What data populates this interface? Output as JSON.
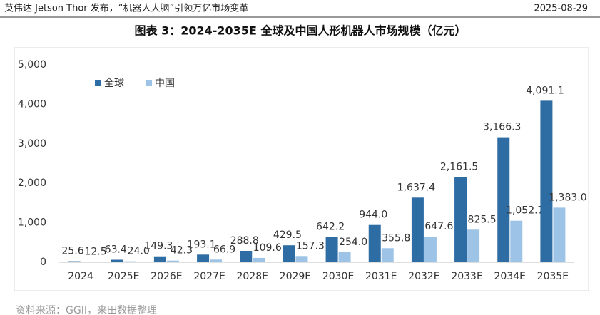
{
  "header": {
    "left": "英伟达 Jetson Thor 发布，“机器人大脑”引领万亿市场变革",
    "date": "2025-08-29"
  },
  "source": "资料来源：GGII，来田数据整理",
  "chart_data": {
    "type": "bar",
    "title": "图表 3：2024-2035E 全球及中国人形机器人市场规模（亿元）",
    "categories": [
      "2024",
      "2025E",
      "2026E",
      "2027E",
      "2028E",
      "2029E",
      "2030E",
      "2031E",
      "2032E",
      "2033E",
      "2034E",
      "2035E"
    ],
    "series": [
      {
        "name": "全球",
        "color": "#2e6ca4",
        "values": [
          25.6,
          63.4,
          149.3,
          193.1,
          288.8,
          429.5,
          642.2,
          944.0,
          1637.4,
          2161.5,
          3166.3,
          4091.1
        ],
        "value_labels": [
          "25.6",
          "63.4",
          "149.3",
          "193.1",
          "288.8",
          "429.5",
          "642.2",
          "944.0",
          "1,637.4",
          "2,161.5",
          "3,166.3",
          "4,091.1"
        ]
      },
      {
        "name": "中国",
        "color": "#9dc3e6",
        "values": [
          12.5,
          24.0,
          42.3,
          66.9,
          109.6,
          157.3,
          254.0,
          355.8,
          647.6,
          825.5,
          1052.7,
          1383.0
        ],
        "value_labels": [
          "12.5",
          "24.0",
          "42.3",
          "66.9",
          "109.6",
          "157.3",
          "254.0",
          "355.8",
          "647.6",
          "825.5",
          "1,052.7",
          "1,383.0"
        ]
      }
    ],
    "ylim": [
      0,
      5000
    ],
    "yticks": [
      0,
      {
        "value": 1000,
        "label": "1,000"
      },
      {
        "value": 2000,
        "label": "2,000"
      },
      {
        "value": 3000,
        "label": "3,000"
      },
      {
        "value": 4000,
        "label": "4,000"
      },
      {
        "value": 5000,
        "label": "5,000"
      }
    ],
    "grid": false,
    "legend": "top-left"
  }
}
